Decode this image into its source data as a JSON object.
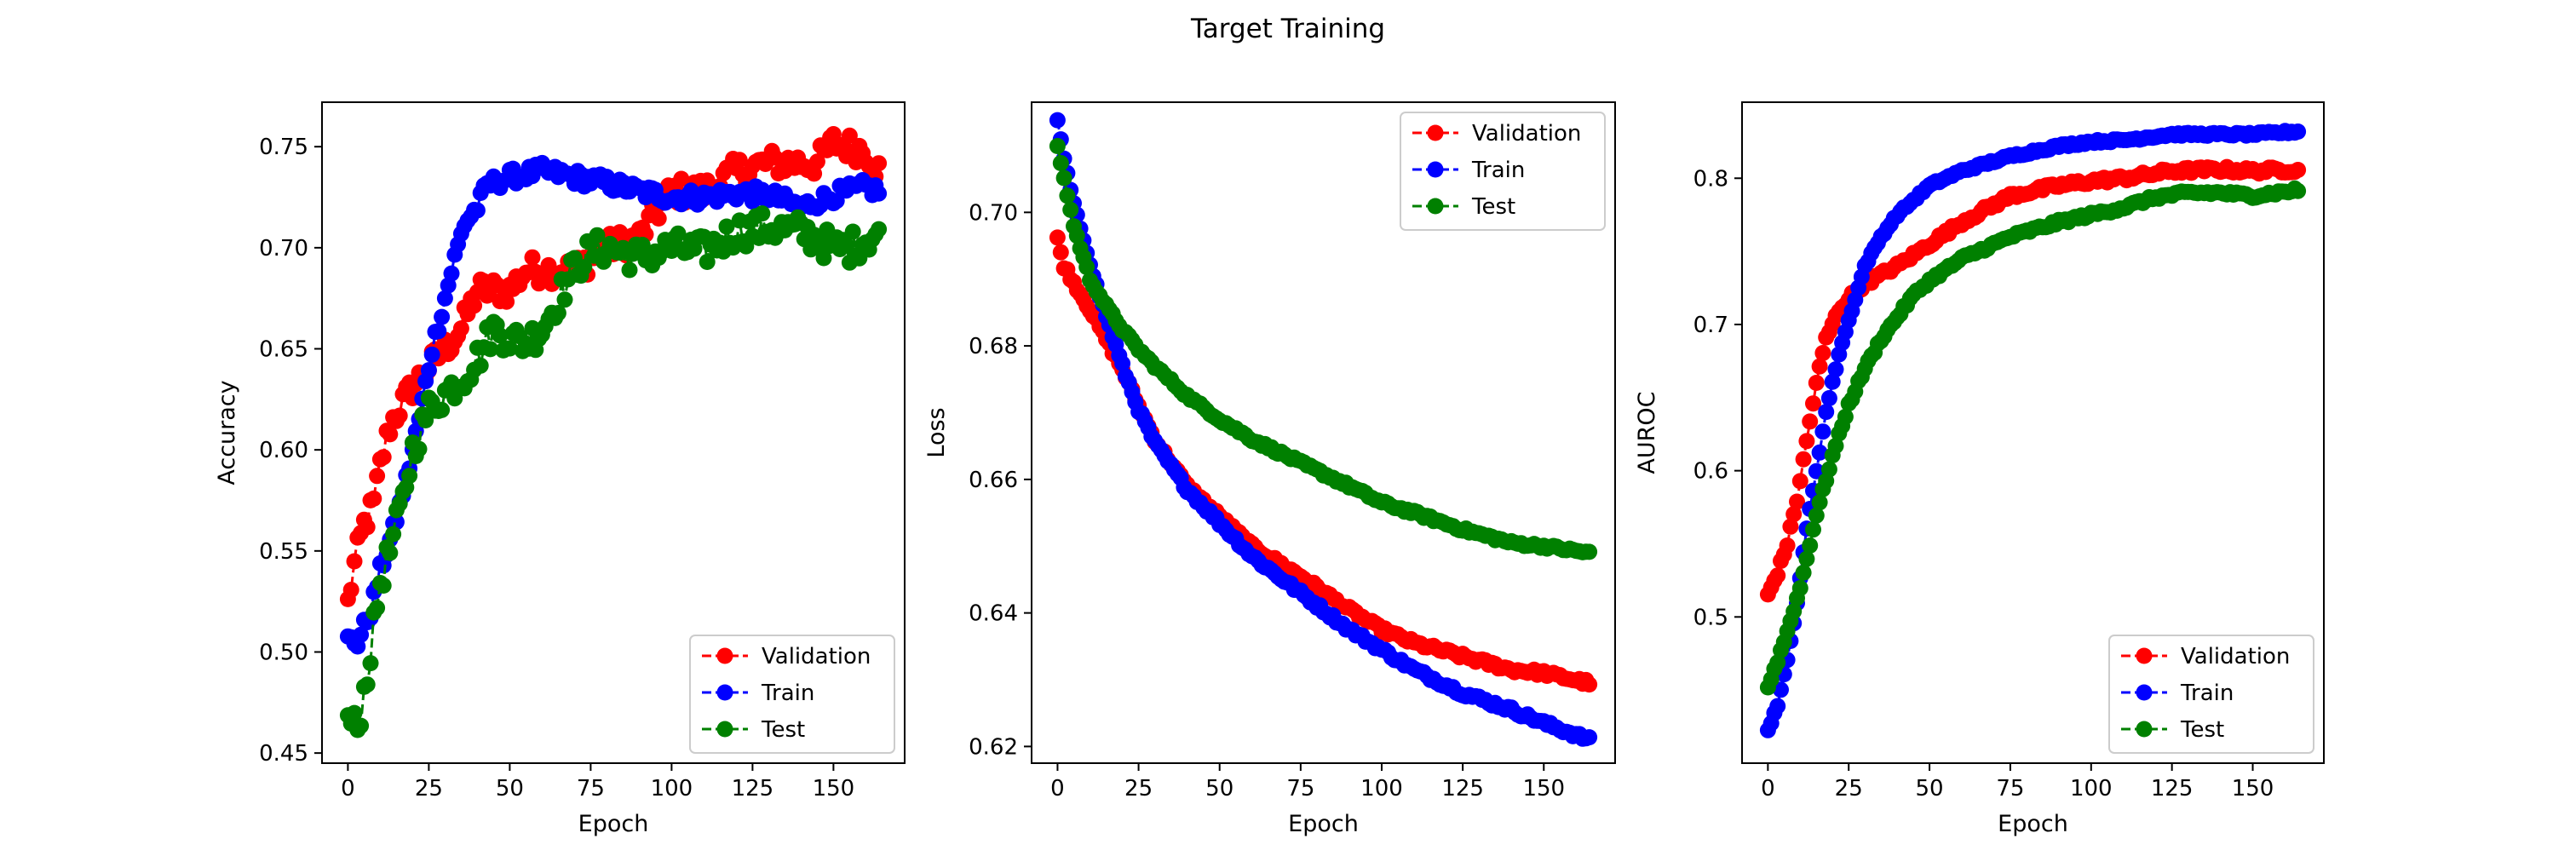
{
  "figure": {
    "title": "Target Training"
  },
  "chart_data": [
    {
      "type": "line",
      "xlabel": "Epoch",
      "ylabel": "Accuracy",
      "xlim": [
        -8,
        172
      ],
      "ylim": [
        0.445,
        0.772
      ],
      "xticks": [
        0,
        25,
        50,
        75,
        100,
        125,
        150
      ],
      "yticks": [
        0.45,
        0.5,
        0.55,
        0.6,
        0.65,
        0.7,
        0.75
      ],
      "tick_decimals": 2,
      "legend_position": "lower-right",
      "epochs": 165,
      "series": [
        {
          "name": "Validation",
          "color": "#ff0000",
          "keypoints": [
            [
              0,
              0.524
            ],
            [
              2,
              0.543
            ],
            [
              5,
              0.563
            ],
            [
              8,
              0.573
            ],
            [
              10,
              0.592
            ],
            [
              13,
              0.612
            ],
            [
              16,
              0.621
            ],
            [
              20,
              0.631
            ],
            [
              25,
              0.641
            ],
            [
              30,
              0.65
            ],
            [
              35,
              0.66
            ],
            [
              40,
              0.679
            ],
            [
              50,
              0.679
            ],
            [
              55,
              0.689
            ],
            [
              70,
              0.689
            ],
            [
              80,
              0.7
            ],
            [
              90,
              0.705
            ],
            [
              100,
              0.728
            ],
            [
              110,
              0.728
            ],
            [
              120,
              0.738
            ],
            [
              130,
              0.742
            ],
            [
              145,
              0.742
            ],
            [
              150,
              0.752
            ],
            [
              160,
              0.748
            ],
            [
              164,
              0.738
            ]
          ],
          "noise": 0.007
        },
        {
          "name": "Train",
          "color": "#0000ff",
          "keypoints": [
            [
              0,
              0.506
            ],
            [
              3,
              0.505
            ],
            [
              7,
              0.52
            ],
            [
              10,
              0.54
            ],
            [
              14,
              0.56
            ],
            [
              18,
              0.585
            ],
            [
              22,
              0.615
            ],
            [
              26,
              0.65
            ],
            [
              30,
              0.675
            ],
            [
              33,
              0.695
            ],
            [
              36,
              0.712
            ],
            [
              40,
              0.72
            ],
            [
              43,
              0.731
            ],
            [
              50,
              0.735
            ],
            [
              60,
              0.738
            ],
            [
              70,
              0.735
            ],
            [
              80,
              0.732
            ],
            [
              90,
              0.728
            ],
            [
              100,
              0.725
            ],
            [
              110,
              0.725
            ],
            [
              120,
              0.727
            ],
            [
              130,
              0.726
            ],
            [
              140,
              0.72
            ],
            [
              150,
              0.726
            ],
            [
              160,
              0.73
            ],
            [
              164,
              0.728
            ]
          ],
          "noise": 0.004
        },
        {
          "name": "Test",
          "color": "#008000",
          "keypoints": [
            [
              0,
              0.466
            ],
            [
              3,
              0.462
            ],
            [
              5,
              0.48
            ],
            [
              7,
              0.5
            ],
            [
              10,
              0.535
            ],
            [
              13,
              0.55
            ],
            [
              17,
              0.575
            ],
            [
              20,
              0.6
            ],
            [
              25,
              0.62
            ],
            [
              30,
              0.628
            ],
            [
              35,
              0.635
            ],
            [
              40,
              0.645
            ],
            [
              45,
              0.66
            ],
            [
              50,
              0.655
            ],
            [
              55,
              0.653
            ],
            [
              60,
              0.66
            ],
            [
              65,
              0.675
            ],
            [
              70,
              0.69
            ],
            [
              75,
              0.698
            ],
            [
              80,
              0.7
            ],
            [
              90,
              0.695
            ],
            [
              100,
              0.7
            ],
            [
              110,
              0.698
            ],
            [
              120,
              0.708
            ],
            [
              130,
              0.71
            ],
            [
              140,
              0.708
            ],
            [
              150,
              0.7
            ],
            [
              155,
              0.7
            ],
            [
              164,
              0.708
            ]
          ],
          "noise": 0.008
        }
      ]
    },
    {
      "type": "line",
      "xlabel": "Epoch",
      "ylabel": "Loss",
      "xlim": [
        -8,
        172
      ],
      "ylim": [
        0.6175,
        0.7165
      ],
      "xticks": [
        0,
        25,
        50,
        75,
        100,
        125,
        150
      ],
      "yticks": [
        0.62,
        0.64,
        0.66,
        0.68,
        0.7
      ],
      "tick_decimals": 2,
      "legend_position": "upper-right",
      "epochs": 165,
      "series": [
        {
          "name": "Validation",
          "color": "#ff0000",
          "keypoints": [
            [
              0,
              0.696
            ],
            [
              2,
              0.692
            ],
            [
              5,
              0.6895
            ],
            [
              10,
              0.6855
            ],
            [
              15,
              0.681
            ],
            [
              20,
              0.6765
            ],
            [
              25,
              0.671
            ],
            [
              30,
              0.666
            ],
            [
              35,
              0.6625
            ],
            [
              40,
              0.659
            ],
            [
              50,
              0.6545
            ],
            [
              60,
              0.65
            ],
            [
              75,
              0.6455
            ],
            [
              90,
              0.6405
            ],
            [
              100,
              0.6375
            ],
            [
              110,
              0.6355
            ],
            [
              125,
              0.6335
            ],
            [
              140,
              0.6315
            ],
            [
              150,
              0.631
            ],
            [
              164,
              0.6295
            ]
          ],
          "noise": 0.0004
        },
        {
          "name": "Train",
          "color": "#0000ff",
          "keypoints": [
            [
              0,
              0.7135
            ],
            [
              2,
              0.708
            ],
            [
              5,
              0.701
            ],
            [
              8,
              0.696
            ],
            [
              12,
              0.689
            ],
            [
              16,
              0.683
            ],
            [
              20,
              0.677
            ],
            [
              25,
              0.6705
            ],
            [
              30,
              0.6655
            ],
            [
              35,
              0.662
            ],
            [
              40,
              0.6585
            ],
            [
              50,
              0.6535
            ],
            [
              60,
              0.6485
            ],
            [
              75,
              0.643
            ],
            [
              90,
              0.6375
            ],
            [
              100,
              0.6345
            ],
            [
              110,
              0.6315
            ],
            [
              125,
              0.628
            ],
            [
              140,
              0.6255
            ],
            [
              150,
              0.6235
            ],
            [
              164,
              0.621
            ]
          ],
          "noise": 0.0004
        },
        {
          "name": "Test",
          "color": "#008000",
          "keypoints": [
            [
              0,
              0.71
            ],
            [
              2,
              0.705
            ],
            [
              5,
              0.698
            ],
            [
              10,
              0.69
            ],
            [
              15,
              0.686
            ],
            [
              20,
              0.6825
            ],
            [
              25,
              0.6795
            ],
            [
              30,
              0.677
            ],
            [
              40,
              0.6725
            ],
            [
              50,
              0.669
            ],
            [
              60,
              0.666
            ],
            [
              75,
              0.6625
            ],
            [
              90,
              0.659
            ],
            [
              100,
              0.6565
            ],
            [
              110,
              0.655
            ],
            [
              125,
              0.6525
            ],
            [
              140,
              0.6505
            ],
            [
              150,
              0.65
            ],
            [
              164,
              0.649
            ]
          ],
          "noise": 0.0003
        }
      ]
    },
    {
      "type": "line",
      "xlabel": "Epoch",
      "ylabel": "AUROC",
      "xlim": [
        -8,
        172
      ],
      "ylim": [
        0.4,
        0.852
      ],
      "xticks": [
        0,
        25,
        50,
        75,
        100,
        125,
        150
      ],
      "yticks": [
        0.5,
        0.6,
        0.7,
        0.8
      ],
      "tick_decimals": 1,
      "legend_position": "lower-right",
      "epochs": 165,
      "series": [
        {
          "name": "Validation",
          "color": "#ff0000",
          "keypoints": [
            [
              0,
              0.515
            ],
            [
              3,
              0.53
            ],
            [
              6,
              0.55
            ],
            [
              9,
              0.58
            ],
            [
              12,
              0.62
            ],
            [
              15,
              0.66
            ],
            [
              18,
              0.69
            ],
            [
              22,
              0.71
            ],
            [
              26,
              0.72
            ],
            [
              30,
              0.728
            ],
            [
              40,
              0.74
            ],
            [
              50,
              0.755
            ],
            [
              60,
              0.77
            ],
            [
              75,
              0.788
            ],
            [
              90,
              0.795
            ],
            [
              100,
              0.798
            ],
            [
              110,
              0.8
            ],
            [
              125,
              0.805
            ],
            [
              140,
              0.806
            ],
            [
              150,
              0.805
            ],
            [
              164,
              0.806
            ]
          ],
          "noise": 0.002
        },
        {
          "name": "Train",
          "color": "#0000ff",
          "keypoints": [
            [
              0,
              0.422
            ],
            [
              3,
              0.44
            ],
            [
              6,
              0.47
            ],
            [
              9,
              0.51
            ],
            [
              12,
              0.56
            ],
            [
              15,
              0.6
            ],
            [
              18,
              0.64
            ],
            [
              22,
              0.68
            ],
            [
              26,
              0.71
            ],
            [
              30,
              0.74
            ],
            [
              35,
              0.76
            ],
            [
              40,
              0.775
            ],
            [
              50,
              0.795
            ],
            [
              60,
              0.805
            ],
            [
              75,
              0.815
            ],
            [
              90,
              0.822
            ],
            [
              100,
              0.825
            ],
            [
              110,
              0.826
            ],
            [
              125,
              0.83
            ],
            [
              140,
              0.83
            ],
            [
              150,
              0.83
            ],
            [
              164,
              0.832
            ]
          ],
          "noise": 0.001
        },
        {
          "name": "Test",
          "color": "#008000",
          "keypoints": [
            [
              0,
              0.452
            ],
            [
              3,
              0.47
            ],
            [
              6,
              0.49
            ],
            [
              10,
              0.52
            ],
            [
              15,
              0.57
            ],
            [
              20,
              0.61
            ],
            [
              25,
              0.645
            ],
            [
              30,
              0.67
            ],
            [
              35,
              0.69
            ],
            [
              40,
              0.705
            ],
            [
              45,
              0.72
            ],
            [
              50,
              0.73
            ],
            [
              60,
              0.745
            ],
            [
              75,
              0.76
            ],
            [
              90,
              0.77
            ],
            [
              100,
              0.775
            ],
            [
              110,
              0.78
            ],
            [
              120,
              0.787
            ],
            [
              130,
              0.79
            ],
            [
              140,
              0.79
            ],
            [
              150,
              0.788
            ],
            [
              164,
              0.792
            ]
          ],
          "noise": 0.0015
        }
      ]
    }
  ]
}
